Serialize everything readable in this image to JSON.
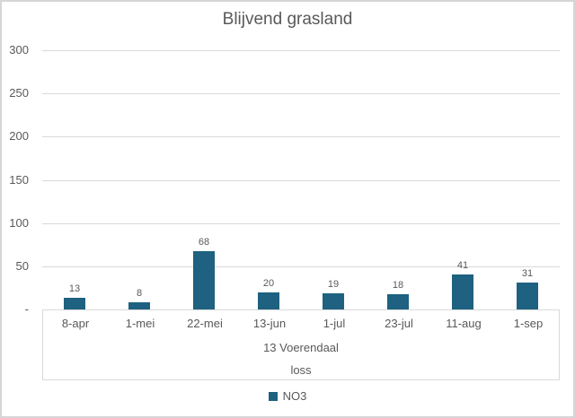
{
  "chart": {
    "title": "Blijvend grasland",
    "legend_label": "NO3",
    "axis_title_line1": "13 Voerendaal",
    "axis_title_line2": "loss"
  },
  "chart_data": {
    "type": "bar",
    "title": "Blijvend grasland",
    "categories": [
      "8-apr",
      "1-mei",
      "22-mei",
      "13-jun",
      "1-jul",
      "23-jul",
      "11-aug",
      "1-sep"
    ],
    "series": [
      {
        "name": "NO3",
        "values": [
          13,
          8,
          68,
          20,
          19,
          18,
          41,
          31
        ]
      }
    ],
    "data_labels": [
      13,
      8,
      68,
      20,
      19,
      18,
      41,
      31
    ],
    "xlabel_lines": [
      "13 Voerendaal",
      "loss"
    ],
    "ylabel": "",
    "ylim": [
      0,
      300
    ],
    "ytick_step": 50,
    "ytick_labels": [
      "-",
      "50",
      "100",
      "150",
      "200",
      "250",
      "300"
    ],
    "grid": true,
    "legend_position": "bottom-center",
    "bar_color": "#1E6180",
    "text_color": "#595959",
    "gridline_color": "#D9D9D9",
    "border_color": "#D6D6D6"
  }
}
